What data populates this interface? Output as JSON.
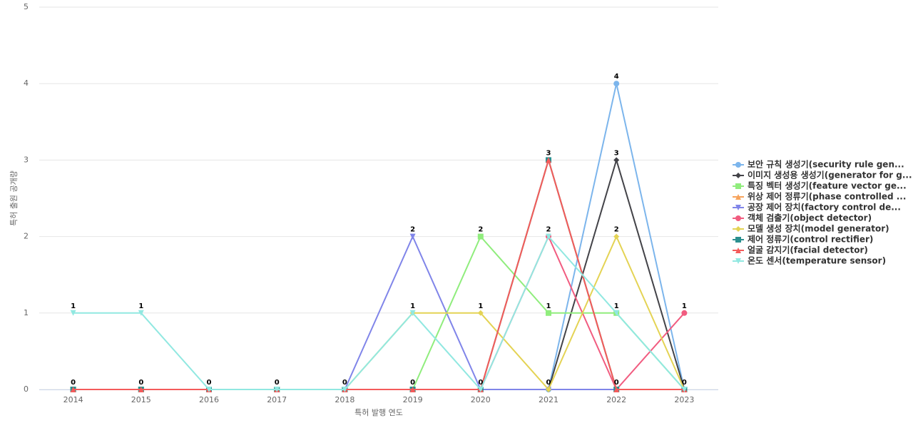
{
  "chart_data": {
    "type": "line",
    "y_label": "특허 출원 공개량",
    "x_label": "특허 발행 연도",
    "categories": [
      "2014",
      "2015",
      "2016",
      "2017",
      "2018",
      "2019",
      "2020",
      "2021",
      "2022",
      "2023"
    ],
    "ylim": [
      0,
      5
    ],
    "yticks": [
      0,
      1,
      2,
      3,
      4,
      5
    ],
    "grid": true,
    "legend": "right",
    "series": [
      {
        "name": "보안 규칙 생성기(security rule gen...",
        "color": "#7cb5ec",
        "values": [
          0,
          0,
          0,
          0,
          0,
          0,
          0,
          0,
          4,
          0
        ]
      },
      {
        "name": "이미지 생성용 생성기(generator for g...",
        "color": "#434348",
        "values": [
          0,
          0,
          0,
          0,
          0,
          0,
          0,
          0,
          3,
          0
        ]
      },
      {
        "name": "특징 벡터 생성기(feature vector ge...",
        "color": "#90ed7d",
        "values": [
          0,
          0,
          0,
          0,
          0,
          0,
          2,
          1,
          1,
          0
        ]
      },
      {
        "name": "위상 제어 정류기(phase controlled ...",
        "color": "#f7a35c",
        "values": [
          0,
          0,
          0,
          0,
          0,
          0,
          0,
          3,
          0,
          0
        ]
      },
      {
        "name": "공장 제어 장치(factory control de...",
        "color": "#8085e9",
        "values": [
          0,
          0,
          0,
          0,
          0,
          2,
          0,
          0,
          0,
          0
        ]
      },
      {
        "name": "객체 검출기(object detector)",
        "color": "#f15c80",
        "values": [
          0,
          0,
          0,
          0,
          0,
          0,
          0,
          2,
          0,
          1
        ]
      },
      {
        "name": "모델 생성 장치(model generator)",
        "color": "#e4d354",
        "values": [
          0,
          0,
          0,
          0,
          0,
          1,
          1,
          0,
          2,
          0
        ]
      },
      {
        "name": "제어 정류기(control rectifier)",
        "color": "#2b908f",
        "values": [
          0,
          0,
          0,
          0,
          0,
          0,
          0,
          3,
          0,
          0
        ]
      },
      {
        "name": "얼굴 감지기(facial detector)",
        "color": "#f45b5b",
        "values": [
          0,
          0,
          0,
          0,
          0,
          0,
          0,
          3,
          0,
          0
        ]
      },
      {
        "name": "온도 센서(temperature sensor)",
        "color": "#91e8e1",
        "values": [
          1,
          1,
          0,
          0,
          0,
          1,
          0,
          2,
          1,
          0
        ]
      }
    ]
  }
}
